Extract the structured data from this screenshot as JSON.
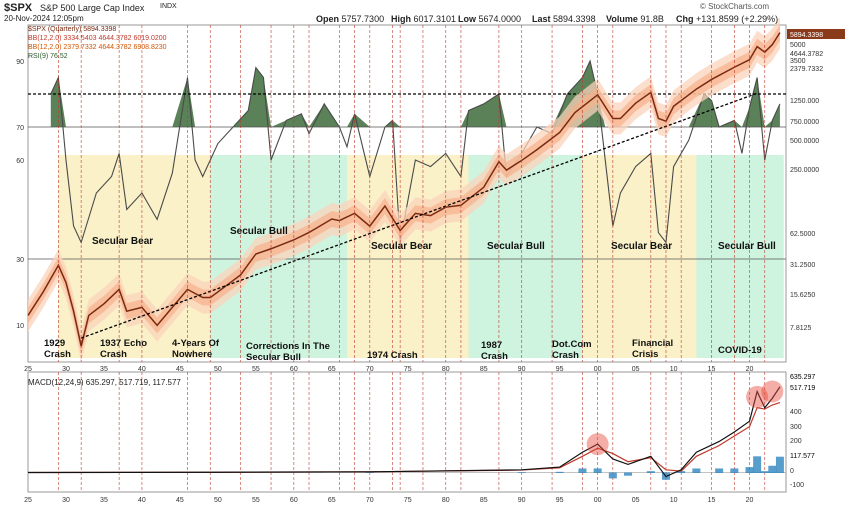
{
  "header": {
    "symbol": "$SPX",
    "name": "S&P 500 Large Cap Index",
    "exchange": "INDX",
    "date": "20-Nov-2024 12:05pm",
    "open_label": "Open",
    "open": "5757.7300",
    "high_label": "High",
    "high": "6017.3101",
    "low_label": "Low",
    "low": "5674.0000",
    "last_label": "Last",
    "last": "5894.3398",
    "volume_label": "Volume",
    "volume": "91.8B",
    "chg_label": "Chg",
    "chg": "+131.8599 (+2.29%)",
    "watermark": "© StockCharts.com"
  },
  "legend": {
    "price": "$SPX (Quarterly) 5894.3398",
    "bb1": "BB(12,2.0) 3334.5403 4644.3782 6019.0200",
    "bb2": "BB(12,2.0) 2379.7332 4644.3782 6908.8230",
    "rsi": "RSI(9) 76.52",
    "macd": "MACD(12,24,9) 635.297, 517.719, 117.577"
  },
  "colors": {
    "bear_zone": "#faefc2",
    "bull_zone": "#c9f2dc",
    "price_line": "#7a2a10",
    "bb_fill": "#f7b08a",
    "bb_fill_outer": "#fbd3bb",
    "rsi_fill": "#3d6b3a",
    "macd_line": "#111111",
    "signal_line": "#c0392b",
    "histogram": "#2e86c1",
    "vline": "#c0392b"
  },
  "chart_data": [
    {
      "type": "line",
      "title": "S&P 500 Large Cap Index (Quarterly)",
      "y_scale": "log",
      "left_axis_ticks": [
        "90",
        "70",
        "60",
        "30",
        "10"
      ],
      "right_axis_ticks": [
        "5894.3398",
        "5000",
        "4644.3782",
        "3500",
        "2379.7332",
        "1250.000",
        "750.0000",
        "500.0000",
        "250.0000",
        "62.5000",
        "31.2500",
        "15.6250",
        "7.8125"
      ],
      "x_ticks": [
        "25",
        "30",
        "35",
        "40",
        "45",
        "50",
        "55",
        "60",
        "65",
        "70",
        "75",
        "80",
        "85",
        "90",
        "95",
        "00",
        "05",
        "10",
        "15",
        "20"
      ],
      "x": [
        1925,
        1927,
        1929,
        1930,
        1931,
        1932,
        1933,
        1935,
        1937,
        1938,
        1940,
        1942,
        1944,
        1946,
        1948,
        1949,
        1950,
        1953,
        1955,
        1957,
        1960,
        1962,
        1965,
        1966,
        1968,
        1970,
        1972,
        1974,
        1976,
        1978,
        1980,
        1982,
        1985,
        1987,
        1988,
        1990,
        1992,
        1995,
        1997,
        2000,
        2002,
        2003,
        2005,
        2007,
        2008,
        2009,
        2010,
        2013,
        2015,
        2018,
        2020,
        2021,
        2022,
        2023,
        2024
      ],
      "y": [
        10,
        17,
        31,
        21,
        11,
        5,
        10,
        13,
        18,
        11,
        12,
        8,
        12,
        18,
        15,
        15,
        17,
        25,
        40,
        45,
        55,
        65,
        88,
        85,
        100,
        75,
        118,
        68,
        100,
        95,
        115,
        120,
        180,
        320,
        265,
        330,
        420,
        620,
        970,
        1450,
        850,
        850,
        1200,
        1530,
        850,
        800,
        1120,
        1650,
        2050,
        2700,
        3200,
        4300,
        3800,
        4500,
        5894
      ],
      "zones": [
        {
          "type": "bear",
          "from": 1929,
          "to": 1949,
          "label": "Secular Bear"
        },
        {
          "type": "bull",
          "from": 1949,
          "to": 1967,
          "label": "Secular Bull"
        },
        {
          "type": "bear",
          "from": 1967,
          "to": 1983,
          "label": "Secular Bear"
        },
        {
          "type": "bull",
          "from": 1983,
          "to": 1998,
          "label": "Secular Bull"
        },
        {
          "type": "bear",
          "from": 1998,
          "to": 2013,
          "label": "Secular Bear"
        },
        {
          "type": "bull",
          "from": 2013,
          "to": 2024.5,
          "label": "Secular Bull"
        }
      ],
      "events": [
        {
          "x": 1929,
          "label": "1929\nCrash"
        },
        {
          "x": 1937,
          "label": "1937 Echo\nCrash"
        },
        {
          "x": 1946,
          "label": "4-Years Of\nNowhere"
        },
        {
          "x": 1957,
          "label": "Corrections In The\nSecular Bull"
        },
        {
          "x": 1974,
          "label": "1974 Crash"
        },
        {
          "x": 1987,
          "label": "1987\nCrash"
        },
        {
          "x": 2000,
          "label": "Dot.Com\nCrash"
        },
        {
          "x": 2008,
          "label": "Financial\nCrisis"
        },
        {
          "x": 2020,
          "label": "COVID-19"
        }
      ],
      "rsi_x": [
        1928,
        1929,
        1930,
        1931,
        1932,
        1934,
        1936,
        1937,
        1938,
        1940,
        1942,
        1944,
        1946,
        1947,
        1948,
        1950,
        1952,
        1954,
        1955,
        1956,
        1957,
        1959,
        1961,
        1962,
        1964,
        1966,
        1967,
        1968,
        1970,
        1972,
        1973,
        1974,
        1976,
        1978,
        1980,
        1982,
        1983,
        1985,
        1987,
        1988,
        1990,
        1992,
        1994,
        1996,
        1998,
        1999,
        2000,
        2001,
        2002,
        2003,
        2005,
        2007,
        2008,
        2009,
        2010,
        2012,
        2014,
        2015,
        2016,
        2018,
        2019,
        2020,
        2021,
        2022,
        2023,
        2024
      ],
      "rsi_y": [
        80,
        85,
        60,
        40,
        35,
        50,
        55,
        62,
        45,
        50,
        42,
        56,
        85,
        60,
        55,
        65,
        70,
        75,
        88,
        85,
        60,
        72,
        74,
        68,
        77,
        70,
        64,
        74,
        55,
        70,
        72,
        35,
        60,
        58,
        62,
        55,
        75,
        77,
        80,
        55,
        62,
        70,
        68,
        80,
        85,
        90,
        80,
        60,
        40,
        50,
        58,
        62,
        38,
        35,
        58,
        66,
        80,
        78,
        70,
        72,
        62,
        76,
        85,
        60,
        72,
        77
      ]
    },
    {
      "type": "line",
      "title": "MACD(12,24,9)",
      "y_ticks": [
        "635.297",
        "517.719",
        "400",
        "300",
        "200",
        "117.577",
        "0",
        "-100"
      ],
      "series": [
        {
          "name": "MACD",
          "x": [
            1925,
            1950,
            1970,
            1990,
            1995,
            1998,
            2000,
            2002,
            2004,
            2007,
            2009,
            2011,
            2013,
            2016,
            2018,
            2020,
            2021,
            2022,
            2023,
            2024
          ],
          "values": [
            0,
            2,
            5,
            20,
            40,
            150,
            210,
            100,
            60,
            120,
            -30,
            20,
            150,
            230,
            300,
            380,
            600,
            480,
            550,
            635
          ]
        },
        {
          "name": "Signal",
          "x": [
            1925,
            1950,
            1970,
            1990,
            1995,
            1998,
            2000,
            2002,
            2004,
            2007,
            2009,
            2011,
            2013,
            2016,
            2018,
            2020,
            2021,
            2022,
            2023,
            2024
          ],
          "values": [
            0,
            2,
            5,
            18,
            35,
            120,
            180,
            140,
            80,
            110,
            20,
            10,
            120,
            200,
            270,
            340,
            480,
            470,
            500,
            518
          ]
        }
      ]
    }
  ]
}
